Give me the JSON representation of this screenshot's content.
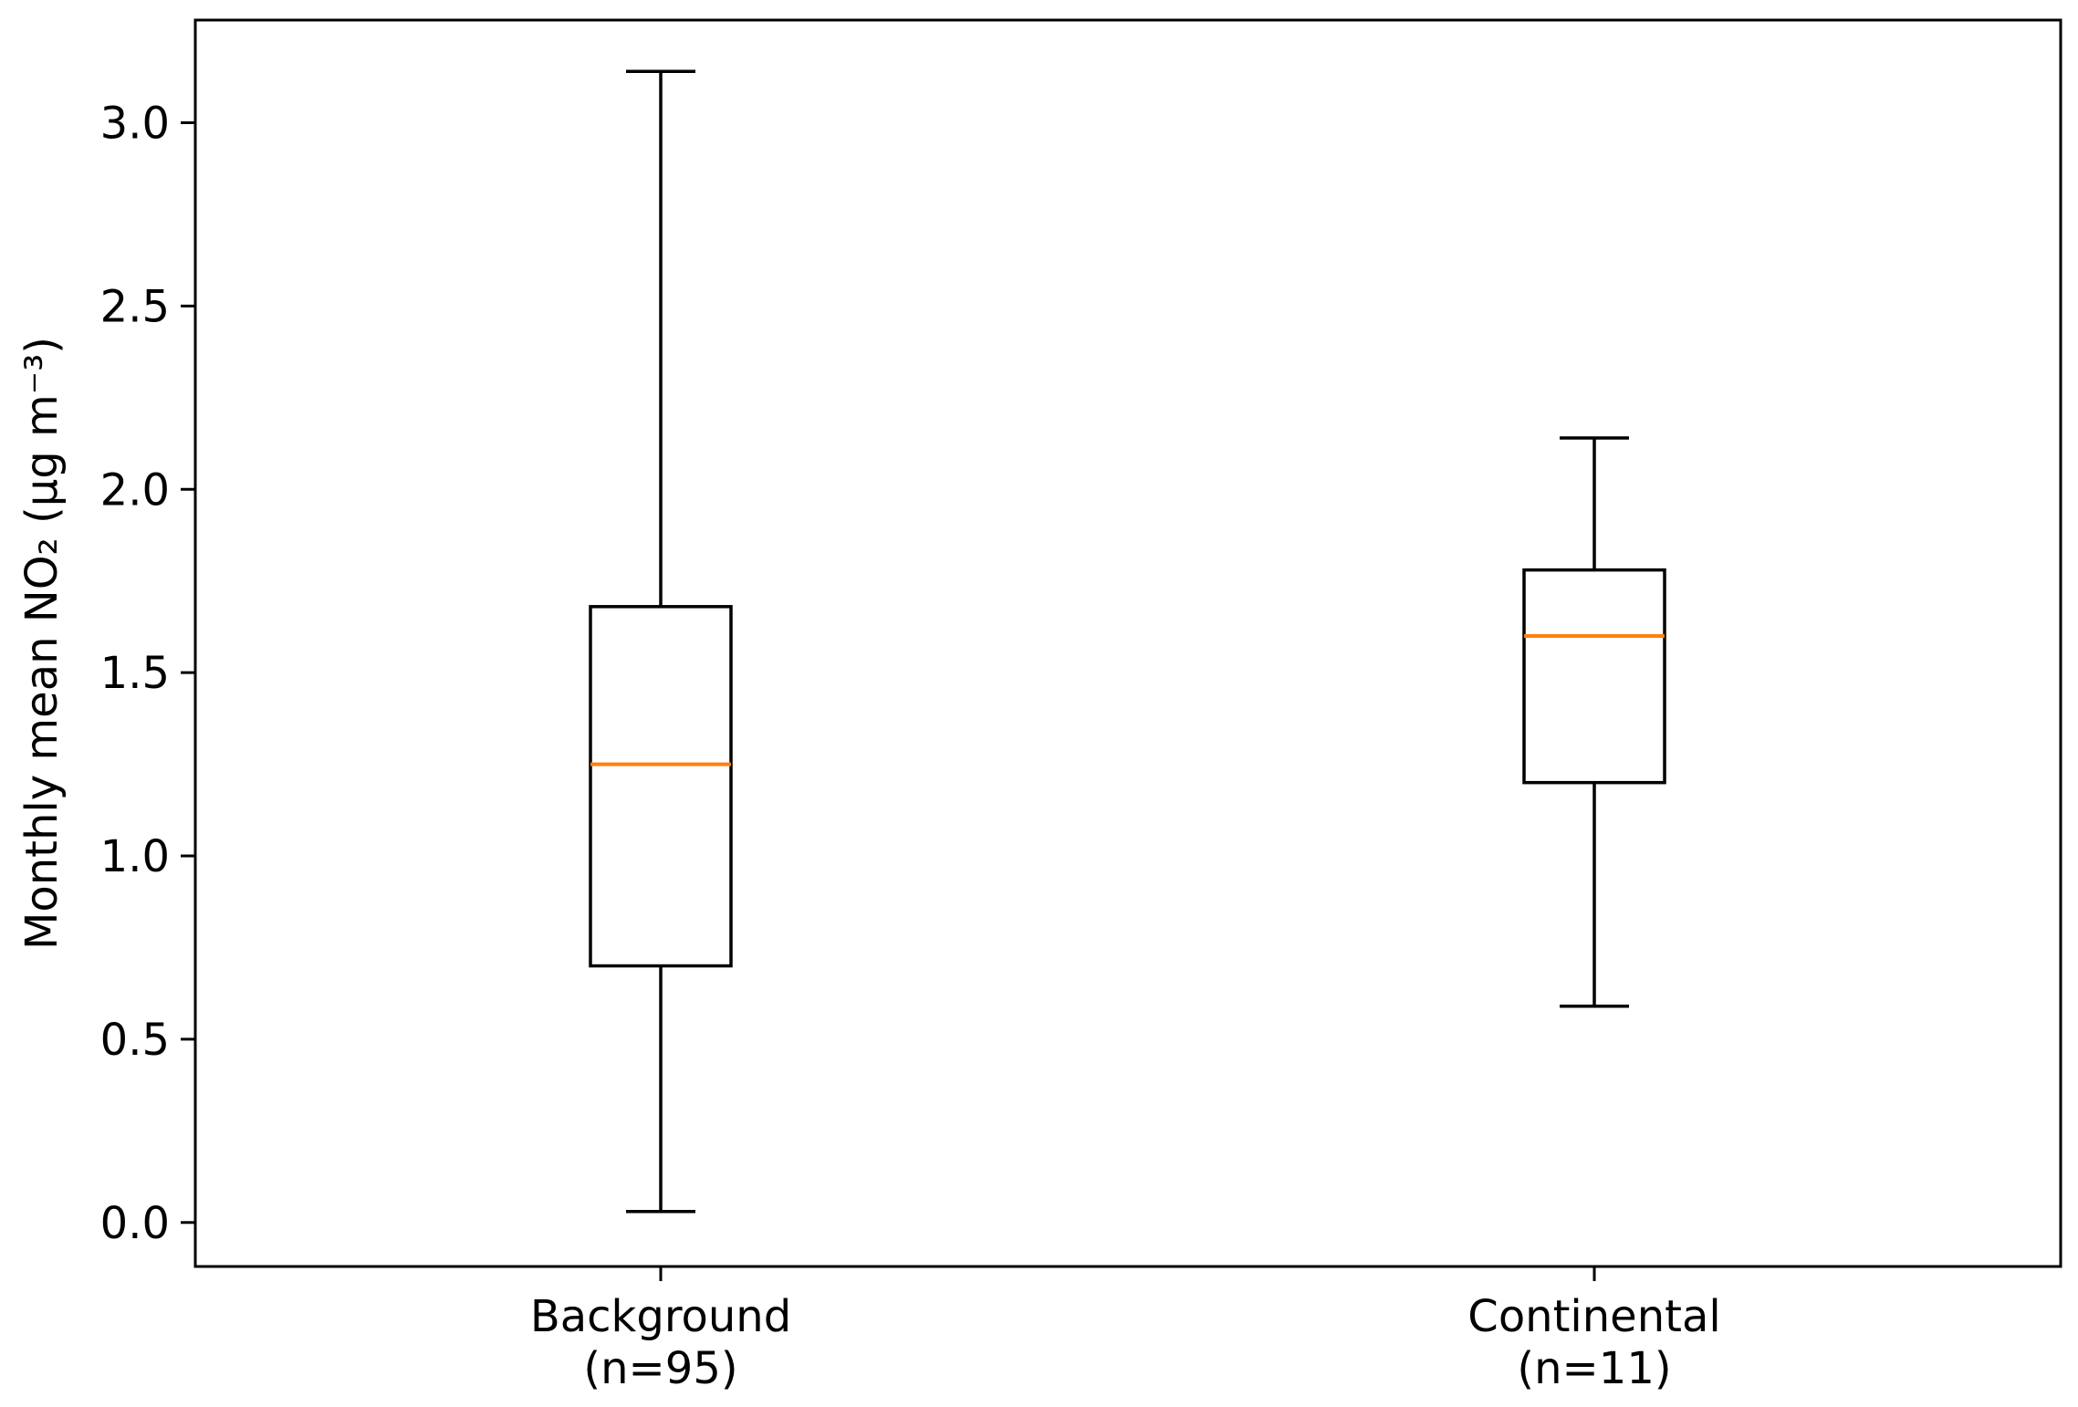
{
  "chart_data": {
    "type": "boxplot",
    "title": "",
    "xlabel": "",
    "ylabel": "Monthly mean NO₂ (µg m⁻³)",
    "ylim": [
      -0.12,
      3.28
    ],
    "yticks": [
      "0.0",
      "0.5",
      "1.0",
      "1.5",
      "2.0",
      "2.5",
      "3.0"
    ],
    "ytick_values": [
      0.0,
      0.5,
      1.0,
      1.5,
      2.0,
      2.5,
      3.0
    ],
    "grid": false,
    "legend": "none",
    "categories": [
      {
        "label": "Background",
        "sublabel": "(n=95)"
      },
      {
        "label": "Continental",
        "sublabel": "(n=11)"
      }
    ],
    "boxes": [
      {
        "category": "Background",
        "whisker_low": 0.03,
        "q1": 0.7,
        "median": 1.25,
        "q3": 1.68,
        "whisker_high": 3.14
      },
      {
        "category": "Continental",
        "whisker_low": 0.59,
        "q1": 1.2,
        "median": 1.6,
        "q3": 1.78,
        "whisker_high": 2.14
      }
    ],
    "colors": {
      "box": "#000000",
      "median": "#ff7f0e",
      "axes": "#000000"
    }
  }
}
